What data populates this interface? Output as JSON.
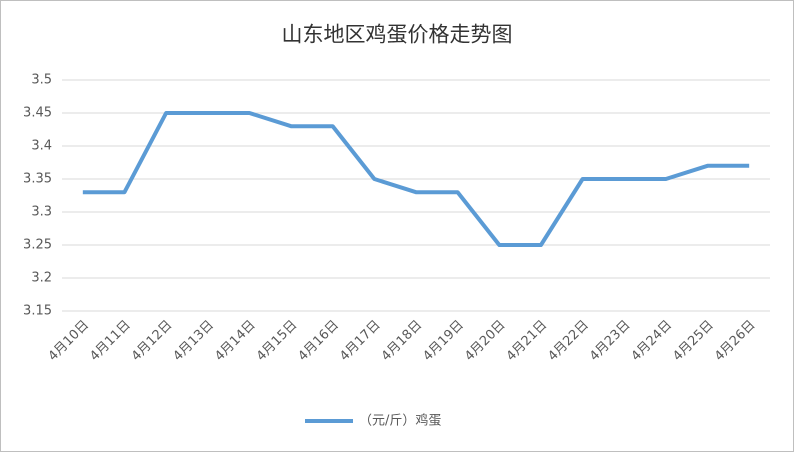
{
  "chart_data": {
    "type": "line",
    "title": "山东地区鸡蛋价格走势图",
    "categories": [
      "4月10日",
      "4月11日",
      "4月12日",
      "4月13日",
      "4月14日",
      "4月15日",
      "4月16日",
      "4月17日",
      "4月18日",
      "4月19日",
      "4月20日",
      "4月21日",
      "4月22日",
      "4月23日",
      "4月24日",
      "4月25日",
      "4月26日"
    ],
    "series": [
      {
        "name": "（元/斤）鸡蛋",
        "color": "#5b9bd5",
        "values": [
          3.33,
          3.33,
          3.45,
          3.45,
          3.45,
          3.43,
          3.43,
          3.35,
          3.33,
          3.33,
          3.25,
          3.25,
          3.35,
          3.35,
          3.35,
          3.37,
          3.37
        ]
      }
    ],
    "ylim": [
      3.15,
      3.5
    ],
    "yticks": [
      3.15,
      3.2,
      3.25,
      3.3,
      3.35,
      3.4,
      3.45,
      3.5
    ],
    "grid": true,
    "legend": "bottom"
  }
}
